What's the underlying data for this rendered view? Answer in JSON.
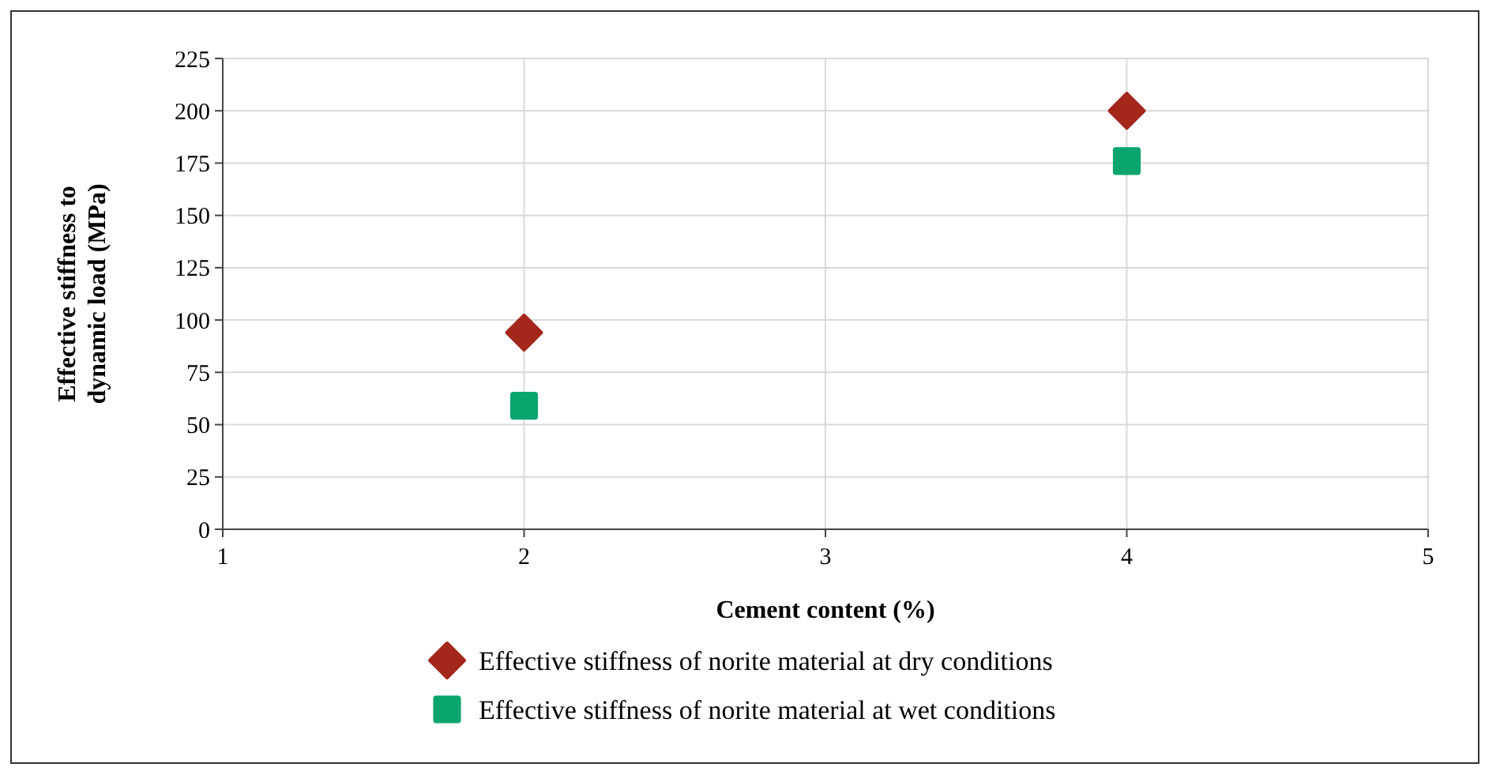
{
  "chart_data": {
    "type": "scatter",
    "xlabel": "Cement content (%)",
    "ylabel": "Effective stiffness to dynamic load (MPa)",
    "x": [
      2,
      4
    ],
    "xlim": [
      1,
      5
    ],
    "xticks": [
      1,
      2,
      3,
      4,
      5
    ],
    "ylim": [
      0,
      225
    ],
    "yticks": [
      0,
      25,
      50,
      75,
      100,
      125,
      150,
      175,
      200,
      225
    ],
    "grid": true,
    "legend": "bottom",
    "series": [
      {
        "name": "Effective stiffness of norite material at dry conditions",
        "color": "#a3271b",
        "marker": "diamond",
        "values": [
          94,
          200
        ]
      },
      {
        "name": "Effective stiffness of norite material at wet conditions",
        "color": "#0aa56c",
        "marker": "square",
        "values": [
          59,
          176
        ]
      }
    ]
  }
}
